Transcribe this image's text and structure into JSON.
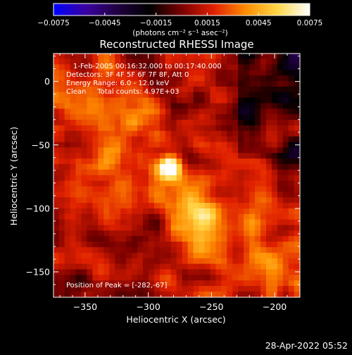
{
  "chart_data": {
    "type": "heatmap",
    "title": "Reconstructed RHESSI Image",
    "xlabel": "Heliocentric X (arcsec)",
    "ylabel": "Heliocentric Y (arcsec)",
    "xlim": [
      -375,
      -180
    ],
    "ylim": [
      -170,
      22
    ],
    "xticks": [
      -350,
      -300,
      -250,
      -200
    ],
    "yticks": [
      0,
      -50,
      -100,
      -150
    ],
    "xtick_labels": [
      "−350",
      "−300",
      "−250",
      "−200"
    ],
    "ytick_labels": [
      "0",
      "−50",
      "−100",
      "−150"
    ],
    "colorbar": {
      "min": -0.0075,
      "max": 0.0075,
      "ticks": [
        -0.0075,
        -0.0045,
        -0.0015,
        0.0015,
        0.0045,
        0.0075
      ],
      "tick_labels": [
        "−0.0075",
        "−0.0045",
        "−0.0015",
        "0.0015",
        "0.0045",
        "0.0075"
      ],
      "units_label": "(photons cm⁻² s⁻¹ asec⁻²)",
      "colormap": [
        "#0000ff",
        "#3a00a0",
        "#200040",
        "#000000",
        "#7a0000",
        "#e02000",
        "#ff8c00",
        "#ffd84a",
        "#ffffff"
      ]
    },
    "annotations": [
      "1-Feb-2005 00:16:32.000 to 00:17:40.000",
      "Detectors: 3F 4F 5F 6F 7F 8F, Att 0",
      "Energy Range: 6.0 - 12.0 keV",
      "Clean     Total counts: 4.97E+03",
      "Position of Peak = [-282,-67]"
    ],
    "peak": {
      "x": -282,
      "y": -67,
      "value": 0.0075
    },
    "secondary_peak": {
      "x": -258,
      "y": -110,
      "value": 0.004
    },
    "background_level": 0.0012
  },
  "footer": {
    "timestamp": "28-Apr-2022 05:52"
  }
}
